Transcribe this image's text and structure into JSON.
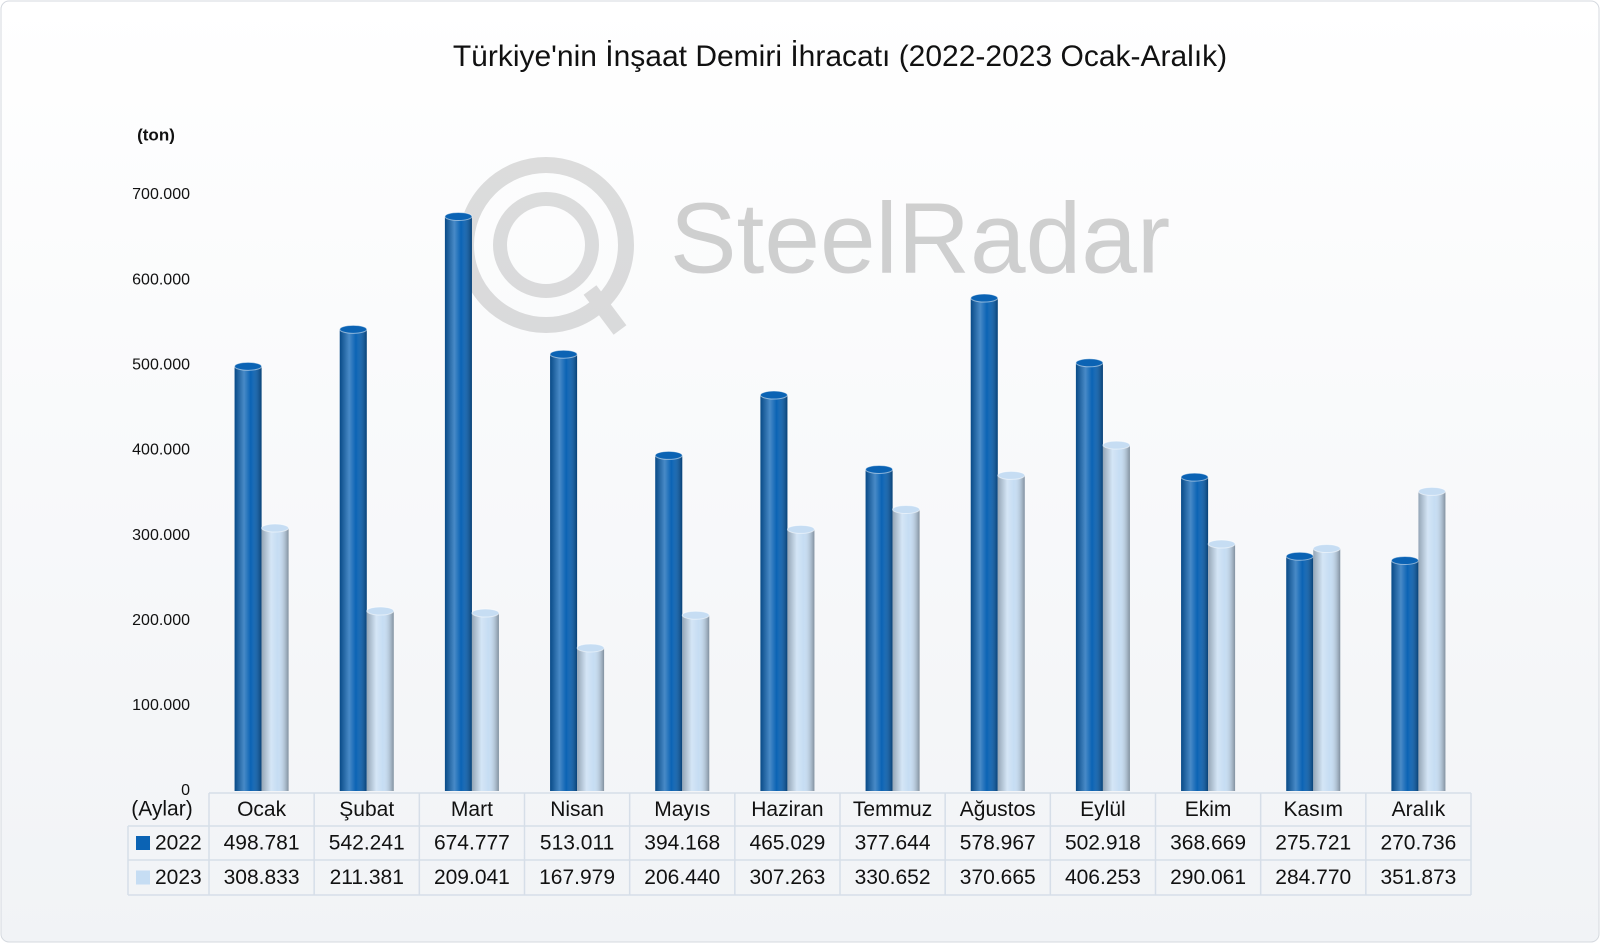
{
  "watermark": "SteelRadar",
  "chart_data": {
    "type": "bar",
    "title": "Türkiye'nin İnşaat Demiri İhracatı (2022-2023 Ocak-Aralık)",
    "y_label": "(ton)",
    "x_label": "(Aylar)",
    "categories": [
      "Ocak",
      "Şubat",
      "Mart",
      "Nisan",
      "Mayıs",
      "Haziran",
      "Temmuz",
      "Ağustos",
      "Eylül",
      "Ekim",
      "Kasım",
      "Aralık"
    ],
    "series": [
      {
        "name": "2022",
        "color": "#0b63b4",
        "values": [
          498781,
          542241,
          674777,
          513011,
          394168,
          465029,
          377644,
          578967,
          502918,
          368669,
          275721,
          270736
        ],
        "value_labels": [
          "498.781",
          "542.241",
          "674.777",
          "513.011",
          "394.168",
          "465.029",
          "377.644",
          "578.967",
          "502.918",
          "368.669",
          "275.721",
          "270.736"
        ]
      },
      {
        "name": "2023",
        "color": "#c6ddf3",
        "values": [
          308833,
          211381,
          209041,
          167979,
          206440,
          307263,
          330652,
          370665,
          406253,
          290061,
          284770,
          351873
        ],
        "value_labels": [
          "308.833",
          "211.381",
          "209.041",
          "167.979",
          "206.440",
          "307.263",
          "330.652",
          "370.665",
          "406.253",
          "290.061",
          "284.770",
          "351.873"
        ]
      }
    ],
    "ylim": [
      0,
      700000
    ],
    "yticks": [
      0,
      {
        "value": 100000,
        "label": "100.000"
      },
      {
        "value": 200000,
        "label": "200.000"
      },
      {
        "value": 300000,
        "label": "300.000"
      },
      {
        "value": 400000,
        "label": "400.000"
      },
      {
        "value": 500000,
        "label": "500.000"
      },
      {
        "value": 600000,
        "label": "600.000"
      },
      {
        "value": 700000,
        "label": "700.000"
      }
    ],
    "legend": "table"
  }
}
